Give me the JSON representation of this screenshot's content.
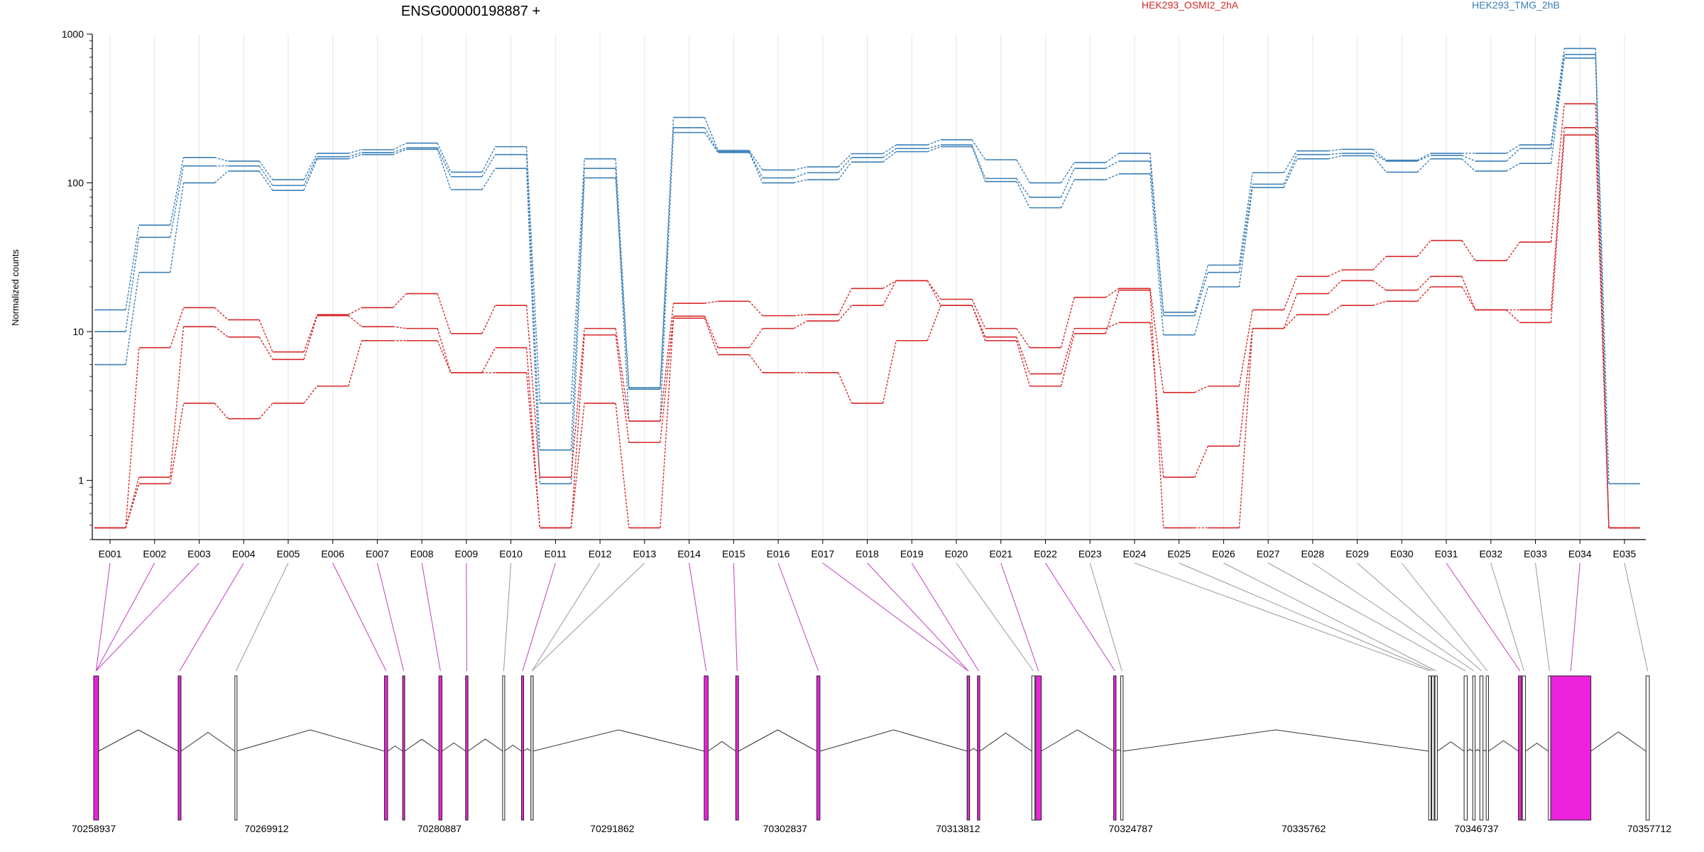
{
  "chart_data": {
    "type": "line",
    "title": "ENSG00000198887 +",
    "ylabel": "Normalized counts",
    "yscale": "log",
    "ylim": [
      0.4,
      1000
    ],
    "yticks": [
      1,
      10,
      100,
      1000
    ],
    "ytick_labels": [
      "1",
      "10",
      "100",
      "1000"
    ],
    "grid": "vertical lines at each exon bin",
    "legend": [
      {
        "name": "HEK293_OSMI2_2hA",
        "color": "#d62728"
      },
      {
        "name": "HEK293_TMG_2hB",
        "color": "#3a7fb8"
      }
    ],
    "categories": [
      "E001",
      "E002",
      "E003",
      "E004",
      "E005",
      "E006",
      "E007",
      "E008",
      "E009",
      "E010",
      "E011",
      "E012",
      "E013",
      "E014",
      "E015",
      "E016",
      "E017",
      "E018",
      "E019",
      "E020",
      "E021",
      "E022",
      "E023",
      "E024",
      "E025",
      "E026",
      "E027",
      "E028",
      "E029",
      "E030",
      "E031",
      "E032",
      "E033",
      "E034",
      "E035"
    ],
    "series": [
      {
        "group": "HEK293_TMG_2hB",
        "color": "#3a7fb8",
        "values": [
          14,
          52,
          148,
          140,
          105,
          158,
          167,
          185,
          118,
          175,
          3.3,
          145,
          4.2,
          275,
          165,
          122,
          128,
          157,
          180,
          195,
          143,
          100,
          137,
          158,
          13.5,
          28,
          117,
          164,
          168,
          142,
          158,
          158,
          180,
          800,
          0.95
        ]
      },
      {
        "group": "HEK293_TMG_2hB",
        "color": "#3a7fb8",
        "values": [
          10,
          43,
          130,
          130,
          96,
          150,
          160,
          172,
          110,
          155,
          1.6,
          125,
          2.5,
          235,
          162,
          108,
          117,
          148,
          170,
          180,
          107,
          80,
          125,
          140,
          12.8,
          25,
          98,
          155,
          158,
          140,
          153,
          140,
          170,
          730,
          0.48
        ]
      },
      {
        "group": "HEK293_TMG_2hB",
        "color": "#3a7fb8",
        "values": [
          6,
          25,
          100,
          120,
          89,
          145,
          155,
          168,
          90,
          125,
          0.95,
          108,
          4.1,
          218,
          160,
          100,
          105,
          138,
          162,
          175,
          102,
          68,
          105,
          115,
          9.5,
          20,
          93,
          145,
          152,
          118,
          145,
          120,
          135,
          690,
          0.48
        ]
      },
      {
        "group": "HEK293_OSMI2_2hA",
        "color": "#d62728",
        "values": [
          0.48,
          7.8,
          14.5,
          12,
          7.3,
          13,
          14.5,
          18,
          9.7,
          15,
          1.05,
          10.5,
          2.5,
          15.5,
          16,
          12.8,
          13,
          19.5,
          22,
          16.5,
          10.5,
          7.8,
          17,
          19.5,
          3.9,
          4.3,
          14,
          23.5,
          26,
          32,
          41,
          30,
          40,
          340,
          0.48
        ]
      },
      {
        "group": "HEK293_OSMI2_2hA",
        "color": "#d62728",
        "values": [
          0.48,
          1.05,
          10.8,
          9.2,
          6.5,
          12.8,
          10.8,
          10.5,
          5.3,
          7.8,
          0.48,
          9.5,
          1.8,
          12.7,
          7.8,
          10.5,
          11.8,
          15,
          22,
          15,
          9.2,
          5.2,
          10.5,
          11.5,
          1.05,
          1.7,
          10.5,
          18,
          22,
          19,
          23.5,
          14,
          14,
          235,
          0.48
        ]
      },
      {
        "group": "HEK293_OSMI2_2hA",
        "color": "#d62728",
        "values": [
          0.48,
          0.95,
          3.3,
          2.6,
          3.3,
          4.3,
          8.7,
          8.7,
          5.3,
          5.3,
          0.48,
          3.3,
          0.48,
          12.3,
          7.0,
          5.3,
          5.3,
          3.3,
          8.7,
          15,
          8.7,
          4.3,
          9.7,
          19,
          0.48,
          0.48,
          10.5,
          13,
          15,
          16,
          20,
          14,
          11.5,
          210,
          0.48
        ]
      }
    ],
    "gene_model": {
      "coordinate_labels": [
        "70258937",
        "70269912",
        "70280887",
        "70291862",
        "70302837",
        "70313812",
        "70324787",
        "70335762",
        "70346737",
        "70357712"
      ],
      "coord_range": [
        70258937,
        70357712
      ],
      "highlight_color": "#ee22dd",
      "exons": [
        {
          "bin": "E001",
          "start": 70258937,
          "end": 70259237,
          "significant": true
        },
        {
          "bin": "E002",
          "start": 70258937,
          "end": 70259237,
          "significant": true
        },
        {
          "bin": "E003",
          "start": 70258937,
          "end": 70259237,
          "significant": true
        },
        {
          "bin": "E004",
          "start": 70264300,
          "end": 70264480,
          "significant": true
        },
        {
          "bin": "E005",
          "start": 70267900,
          "end": 70267980,
          "significant": false
        },
        {
          "bin": "E006",
          "start": 70277400,
          "end": 70277600,
          "significant": true
        },
        {
          "bin": "E007",
          "start": 70278550,
          "end": 70278680,
          "significant": true
        },
        {
          "bin": "E008",
          "start": 70280850,
          "end": 70281050,
          "significant": true
        },
        {
          "bin": "E009",
          "start": 70282550,
          "end": 70282700,
          "significant": true
        },
        {
          "bin": "E010",
          "start": 70284900,
          "end": 70285000,
          "significant": false
        },
        {
          "bin": "E011",
          "start": 70286100,
          "end": 70286230,
          "significant": true
        },
        {
          "bin": "E012",
          "start": 70286700,
          "end": 70286820,
          "significant": false
        },
        {
          "bin": "E013",
          "start": 70286700,
          "end": 70286820,
          "significant": false
        },
        {
          "bin": "E014",
          "start": 70297700,
          "end": 70297950,
          "significant": true
        },
        {
          "bin": "E015",
          "start": 70299700,
          "end": 70299880,
          "significant": true
        },
        {
          "bin": "E016",
          "start": 70304850,
          "end": 70305050,
          "significant": true
        },
        {
          "bin": "E017",
          "start": 70314400,
          "end": 70314550,
          "significant": true
        },
        {
          "bin": "E018",
          "start": 70314400,
          "end": 70314550,
          "significant": true
        },
        {
          "bin": "E019",
          "start": 70315050,
          "end": 70315200,
          "significant": true
        },
        {
          "bin": "E020",
          "start": 70318500,
          "end": 70318700,
          "significant": false
        },
        {
          "bin": "E021",
          "start": 70318750,
          "end": 70319100,
          "significant": true
        },
        {
          "bin": "E022",
          "start": 70323700,
          "end": 70323850,
          "significant": true
        },
        {
          "bin": "E023",
          "start": 70324150,
          "end": 70324300,
          "significant": false
        },
        {
          "bin": "E024",
          "start": 70343700,
          "end": 70343850,
          "significant": false
        },
        {
          "bin": "E025",
          "start": 70343900,
          "end": 70344050,
          "significant": false
        },
        {
          "bin": "E026",
          "start": 70344100,
          "end": 70344250,
          "significant": false
        },
        {
          "bin": "E027",
          "start": 70345950,
          "end": 70346150,
          "significant": false
        },
        {
          "bin": "E028",
          "start": 70346500,
          "end": 70346650,
          "significant": false
        },
        {
          "bin": "E029",
          "start": 70346950,
          "end": 70347150,
          "significant": false
        },
        {
          "bin": "E030",
          "start": 70347350,
          "end": 70347500,
          "significant": false
        },
        {
          "bin": "E031",
          "start": 70349400,
          "end": 70349600,
          "significant": true
        },
        {
          "bin": "E032",
          "start": 70349650,
          "end": 70349850,
          "significant": false
        },
        {
          "bin": "E033",
          "start": 70351300,
          "end": 70351450,
          "significant": false
        },
        {
          "bin": "E034",
          "start": 70351450,
          "end": 70354000,
          "significant": true
        },
        {
          "bin": "E035",
          "start": 70357500,
          "end": 70357712,
          "significant": false
        }
      ]
    }
  }
}
